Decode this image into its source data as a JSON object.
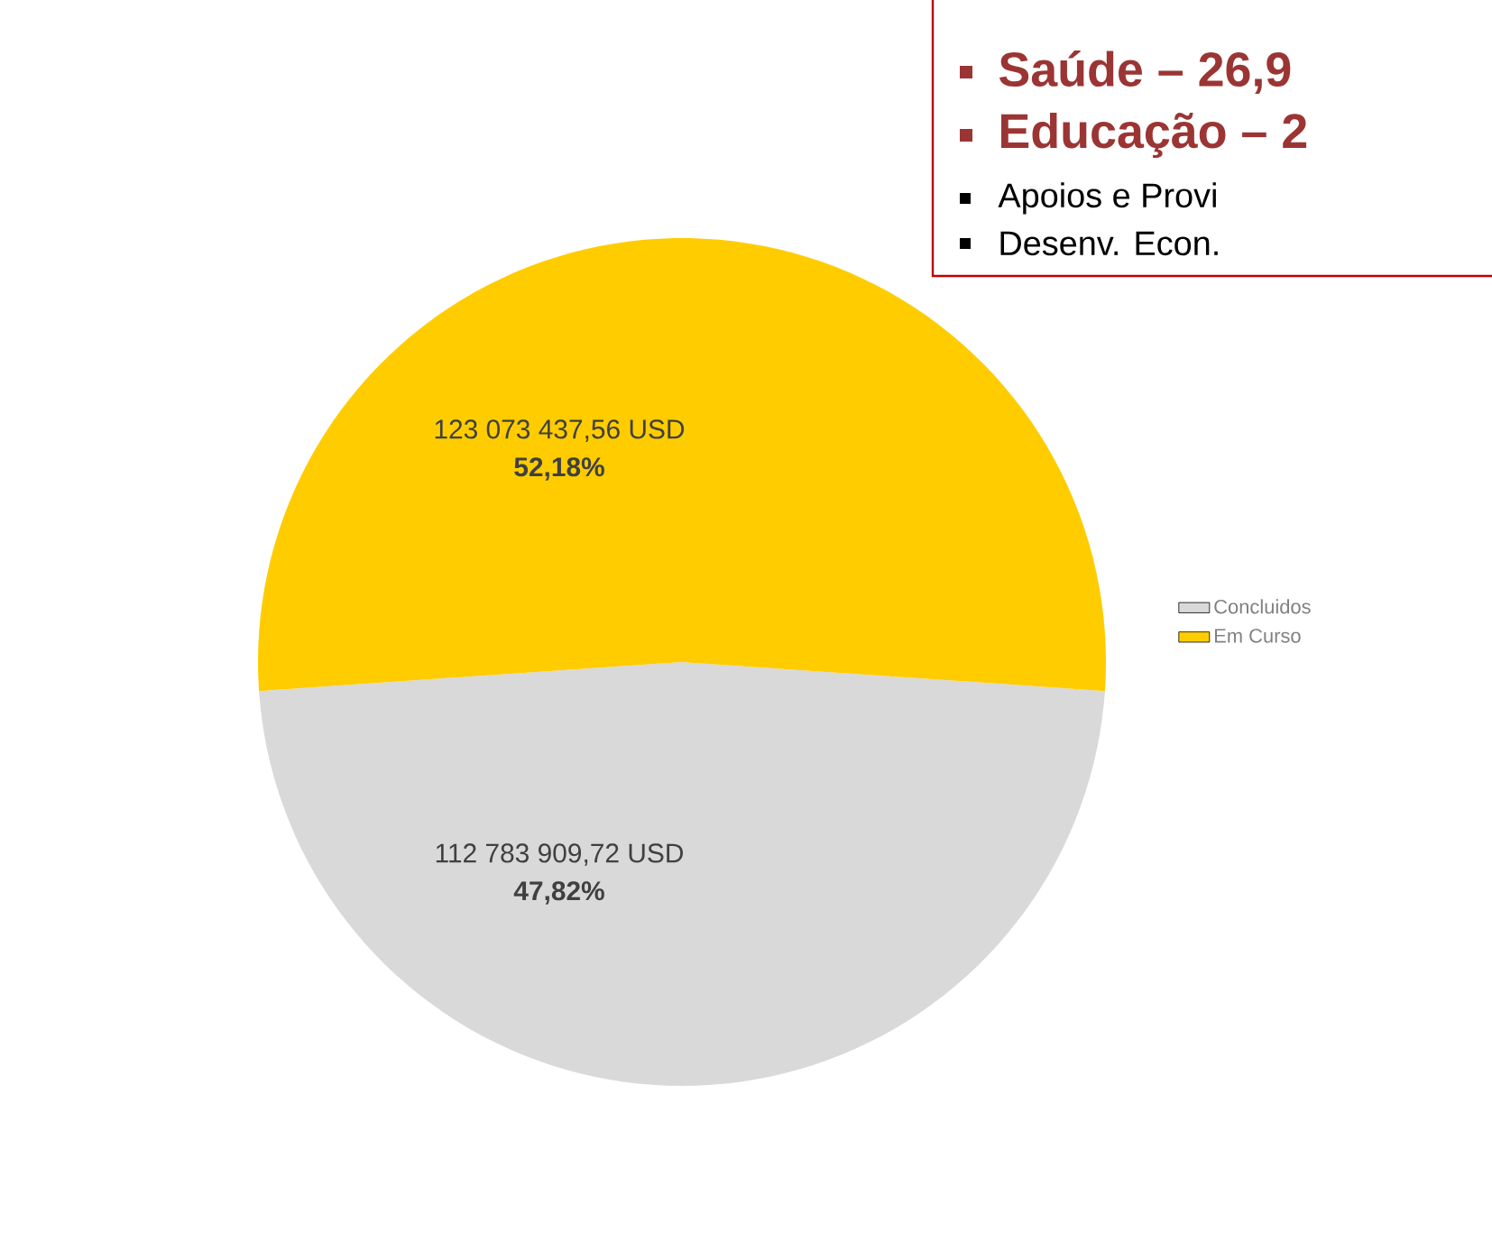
{
  "chart_data": {
    "type": "pie",
    "categories": [
      "Concluidos",
      "Em Curso"
    ],
    "values": [
      112783909.72,
      123073437.56
    ],
    "value_labels": [
      "112 783 909,72 USD",
      "123 073 437,56 USD"
    ],
    "colors": [
      "#d9d9d9",
      "#ffcc00"
    ],
    "legend": "right",
    "annotations": [
      "Saúde – 26,9",
      "Educação – 2",
      "Apoios e Provi",
      "Desenv. Econ.",
      {
        "text": "47,82%",
        "x": "Concluidos"
      },
      {
        "text": "52,18%",
        "x": "Em Curso"
      }
    ]
  }
}
